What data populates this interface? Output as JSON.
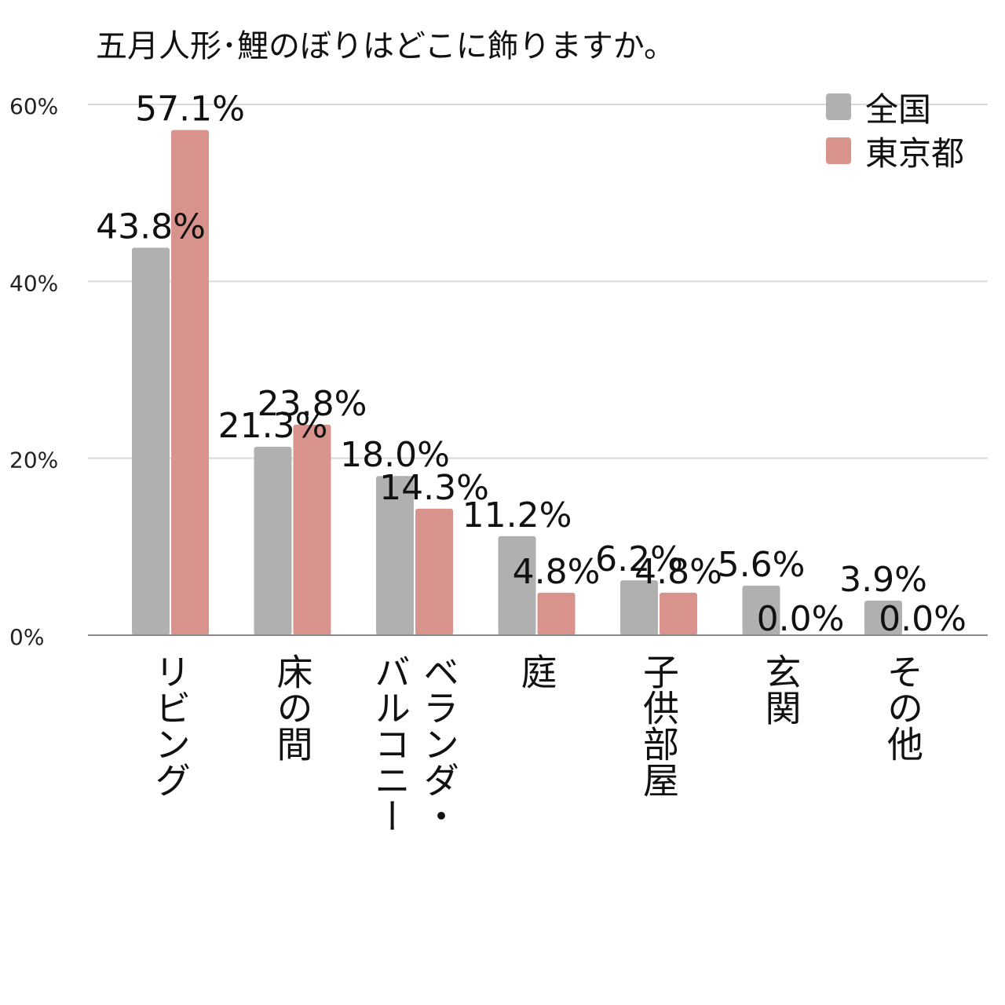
{
  "chart_data": {
    "type": "bar",
    "title": "五月人形･鯉のぼりはどこに飾りますか。",
    "categories": [
      "リビング",
      "床の間",
      "ベランダ・バルコニー",
      "庭",
      "子供部屋",
      "玄関",
      "その他"
    ],
    "category_lines": [
      [
        "リビング"
      ],
      [
        "床の間"
      ],
      [
        "ベランダ・",
        "バルコニー"
      ],
      [
        "庭"
      ],
      [
        "子供部屋"
      ],
      [
        "玄関"
      ],
      [
        "その他"
      ]
    ],
    "series": [
      {
        "name": "全国",
        "color": "#b0b0b0",
        "values": [
          43.8,
          21.3,
          18.0,
          11.2,
          6.2,
          5.6,
          3.9
        ],
        "labels": [
          "43.8%",
          "21.3%",
          "18.0%",
          "11.2%",
          "6.2%",
          "5.6%",
          "3.9%"
        ]
      },
      {
        "name": "東京都",
        "color": "#d8938c",
        "values": [
          57.1,
          23.8,
          14.3,
          4.8,
          4.8,
          0.0,
          0.0
        ],
        "labels": [
          "57.1%",
          "23.8%",
          "14.3%",
          "4.8%",
          "4.8%",
          "0.0%",
          "0.0%"
        ]
      }
    ],
    "yticks": [
      0,
      20,
      40,
      60
    ],
    "ytick_labels": [
      "0%",
      "20%",
      "40%",
      "60%"
    ],
    "ylim": [
      0,
      60
    ],
    "grid": true,
    "legend_position": "top-right"
  }
}
